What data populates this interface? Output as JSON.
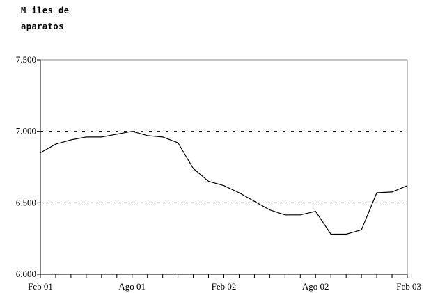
{
  "chart_data": {
    "type": "line",
    "ylabel_lines": [
      "M iles de",
      "aparatos"
    ],
    "x_tick_labels": [
      "Feb 01",
      "Ago 01",
      "Feb 02",
      "Ago 02",
      "Feb 03"
    ],
    "y_tick_labels": [
      "7.500",
      "7.000",
      "6.500",
      "6.000"
    ],
    "ylim": [
      6000,
      7500
    ],
    "y_ticks": [
      7500,
      7000,
      6500,
      6000
    ],
    "gridlines_at": [
      7000,
      6500
    ],
    "grid": "dashed horizontal at 6.500 and 7.000",
    "x_month_index_range": [
      0,
      24
    ],
    "x_month_ticks": [
      0,
      6,
      12,
      18,
      24
    ],
    "series": [
      {
        "x_month_index": [
          0,
          1,
          2,
          3,
          4,
          5,
          6,
          7,
          8,
          9,
          10,
          11,
          12,
          13,
          14,
          15,
          16,
          17,
          18,
          19,
          20,
          21,
          22,
          23,
          24
        ],
        "values": [
          6850,
          6910,
          6940,
          6960,
          6960,
          6980,
          7000,
          6970,
          6960,
          6920,
          6740,
          6650,
          6620,
          6570,
          6510,
          6450,
          6415,
          6415,
          6440,
          6280,
          6280,
          6310,
          6570,
          6575,
          6620
        ]
      }
    ],
    "colors": {
      "line": "#000000",
      "axis": "#000000",
      "grid": "#000000"
    }
  }
}
